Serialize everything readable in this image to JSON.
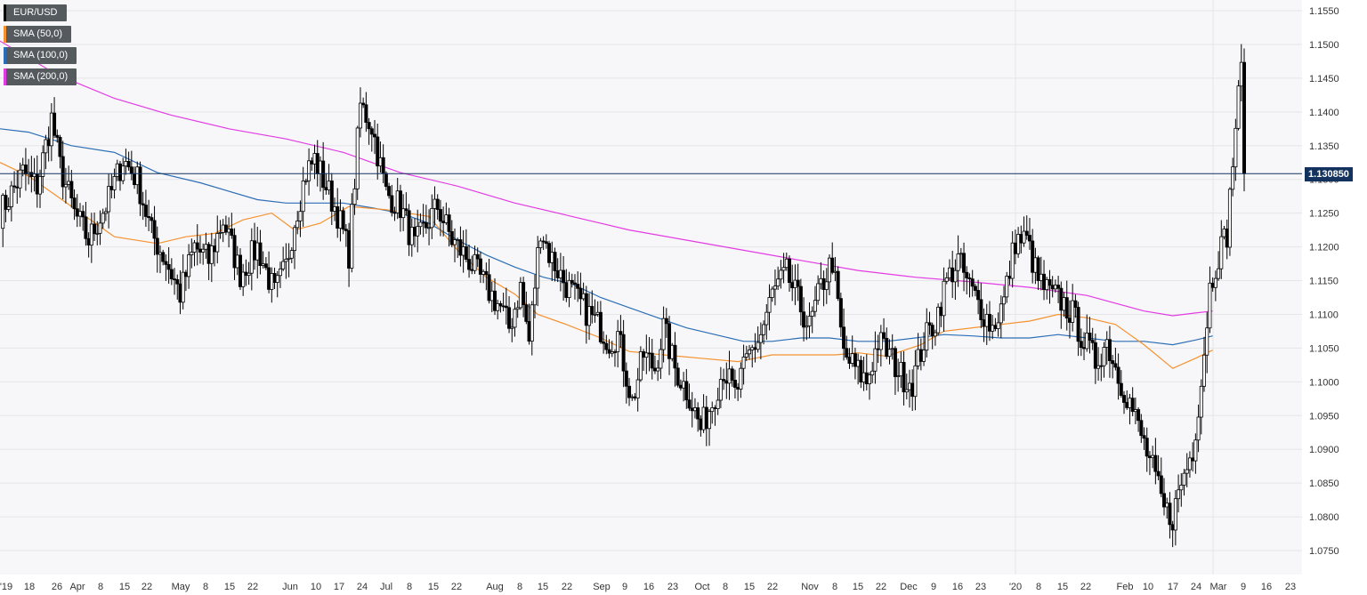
{
  "chart_data": {
    "type": "candlestick",
    "symbol": "EUR/USD",
    "timeframe": "daily",
    "current_price": 1.13085,
    "current_price_label": "1.130850",
    "ylim": [
      1.072,
      1.157
    ],
    "y_ticks": [
      "1.0750",
      "1.0800",
      "1.0850",
      "1.0900",
      "1.0950",
      "1.1000",
      "1.1050",
      "1.1100",
      "1.1150",
      "1.1200",
      "1.1250",
      "1.1300",
      "1.1350",
      "1.1400",
      "1.1450",
      "1.1500",
      "1.1550"
    ],
    "x_ticks": [
      "'19",
      "18",
      "26",
      "Apr",
      "8",
      "15",
      "22",
      "May",
      "8",
      "15",
      "22",
      "Jun",
      "10",
      "17",
      "24",
      "Jul",
      "8",
      "15",
      "22",
      "Aug",
      "8",
      "15",
      "22",
      "Sep",
      "9",
      "16",
      "23",
      "Oct",
      "8",
      "15",
      "22",
      "Nov",
      "8",
      "15",
      "22",
      "Dec",
      "9",
      "16",
      "23",
      "'20",
      "8",
      "15",
      "22",
      "Feb",
      "10",
      "17",
      "24",
      "Mar",
      "9",
      "16",
      "23"
    ],
    "x_tick_label_index": [
      "",
      "",
      "",
      "",
      "",
      "",
      "",
      "",
      "",
      "",
      "",
      "",
      "",
      "",
      "",
      "",
      "",
      "",
      "",
      "",
      "",
      "",
      "",
      "",
      "",
      "",
      "",
      "",
      "",
      "",
      "",
      "",
      "",
      "",
      "",
      "",
      "",
      "",
      "",
      "",
      "",
      "",
      "",
      "",
      "",
      "",
      "",
      "",
      "",
      "",
      ""
    ],
    "legend": [
      {
        "name": "EUR/USD",
        "color": "#000000"
      },
      {
        "name": "SMA (50,0)",
        "color": "#f5922f"
      },
      {
        "name": "SMA (100,0)",
        "color": "#2c6eb5"
      },
      {
        "name": "SMA (200,0)",
        "color": "#e33be3"
      }
    ],
    "colors": {
      "up": "#ffffff",
      "down": "#000000",
      "wick": "#000000",
      "current_line": "#13325e",
      "grid": "#e6e6e9"
    },
    "close_anchors": [
      [
        0,
        1.125
      ],
      [
        8,
        1.131
      ],
      [
        13,
        1.129
      ],
      [
        18,
        1.139
      ],
      [
        21,
        1.132
      ],
      [
        26,
        1.125
      ],
      [
        31,
        1.121
      ],
      [
        38,
        1.127
      ],
      [
        43,
        1.133
      ],
      [
        48,
        1.13
      ],
      [
        53,
        1.122
      ],
      [
        58,
        1.118
      ],
      [
        63,
        1.113
      ],
      [
        68,
        1.12
      ],
      [
        73,
        1.118
      ],
      [
        78,
        1.124
      ],
      [
        84,
        1.116
      ],
      [
        90,
        1.12
      ],
      [
        96,
        1.113
      ],
      [
        100,
        1.117
      ],
      [
        103,
        1.124
      ],
      [
        107,
        1.131
      ],
      [
        110,
        1.133
      ],
      [
        114,
        1.129
      ],
      [
        118,
        1.125
      ],
      [
        122,
        1.119
      ],
      [
        126,
        1.141
      ],
      [
        130,
        1.138
      ],
      [
        135,
        1.128
      ],
      [
        140,
        1.126
      ],
      [
        145,
        1.12
      ],
      [
        150,
        1.124
      ],
      [
        153,
        1.126
      ],
      [
        158,
        1.121
      ],
      [
        164,
        1.118
      ],
      [
        170,
        1.114
      ],
      [
        175,
        1.111
      ],
      [
        178,
        1.108
      ],
      [
        182,
        1.114
      ],
      [
        185,
        1.106
      ],
      [
        189,
        1.123
      ],
      [
        192,
        1.119
      ],
      [
        197,
        1.115
      ],
      [
        202,
        1.112
      ],
      [
        206,
        1.11
      ],
      [
        210,
        1.108
      ],
      [
        213,
        1.106
      ],
      [
        216,
        1.107
      ],
      [
        221,
        1.097
      ],
      [
        225,
        1.104
      ],
      [
        229,
        1.102
      ],
      [
        232,
        1.108
      ],
      [
        236,
        1.102
      ],
      [
        241,
        1.098
      ],
      [
        245,
        1.093
      ],
      [
        249,
        1.097
      ],
      [
        253,
        1.102
      ],
      [
        257,
        1.098
      ],
      [
        262,
        1.104
      ],
      [
        266,
        1.107
      ],
      [
        270,
        1.113
      ],
      [
        275,
        1.116
      ],
      [
        279,
        1.112
      ],
      [
        283,
        1.108
      ],
      [
        287,
        1.114
      ],
      [
        291,
        1.118
      ],
      [
        295,
        1.104
      ],
      [
        299,
        1.102
      ],
      [
        303,
        1.1
      ],
      [
        307,
        1.106
      ],
      [
        311,
        1.104
      ],
      [
        315,
        1.101
      ],
      [
        319,
        1.1
      ],
      [
        323,
        1.106
      ],
      [
        327,
        1.109
      ],
      [
        331,
        1.115
      ],
      [
        335,
        1.118
      ],
      [
        339,
        1.114
      ],
      [
        343,
        1.111
      ],
      [
        347,
        1.108
      ],
      [
        351,
        1.112
      ],
      [
        355,
        1.121
      ],
      [
        359,
        1.121
      ],
      [
        363,
        1.115
      ],
      [
        367,
        1.113
      ],
      [
        371,
        1.112
      ],
      [
        375,
        1.11
      ],
      [
        379,
        1.106
      ],
      [
        383,
        1.103
      ],
      [
        387,
        1.106
      ],
      [
        391,
        1.101
      ],
      [
        395,
        1.097
      ],
      [
        399,
        1.092
      ],
      [
        403,
        1.087
      ],
      [
        407,
        1.081
      ],
      [
        410,
        1.08
      ],
      [
        413,
        1.085
      ],
      [
        417,
        1.09
      ],
      [
        420,
        1.1
      ],
      [
        423,
        1.114
      ],
      [
        426,
        1.119
      ],
      [
        429,
        1.122
      ],
      [
        432,
        1.138
      ],
      [
        434,
        1.146
      ],
      [
        435,
        1.131
      ]
    ],
    "sma50_anchors": [
      [
        0,
        1.1325
      ],
      [
        10,
        1.1305
      ],
      [
        25,
        1.126
      ],
      [
        40,
        1.1215
      ],
      [
        55,
        1.1205
      ],
      [
        65,
        1.1215
      ],
      [
        75,
        1.122
      ],
      [
        85,
        1.124
      ],
      [
        95,
        1.125
      ],
      [
        103,
        1.1225
      ],
      [
        112,
        1.1235
      ],
      [
        122,
        1.126
      ],
      [
        135,
        1.1255
      ],
      [
        150,
        1.1245
      ],
      [
        160,
        1.1195
      ],
      [
        170,
        1.1155
      ],
      [
        180,
        1.113
      ],
      [
        188,
        1.11
      ],
      [
        198,
        1.1085
      ],
      [
        210,
        1.1065
      ],
      [
        220,
        1.1045
      ],
      [
        232,
        1.104
      ],
      [
        245,
        1.1035
      ],
      [
        258,
        1.103
      ],
      [
        270,
        1.104
      ],
      [
        280,
        1.104
      ],
      [
        292,
        1.104
      ],
      [
        300,
        1.1043
      ],
      [
        310,
        1.1038
      ],
      [
        322,
        1.1055
      ],
      [
        330,
        1.1075
      ],
      [
        340,
        1.108
      ],
      [
        350,
        1.1085
      ],
      [
        360,
        1.109
      ],
      [
        370,
        1.11
      ],
      [
        380,
        1.1095
      ],
      [
        390,
        1.1085
      ],
      [
        400,
        1.1055
      ],
      [
        410,
        1.102
      ],
      [
        418,
        1.1035
      ],
      [
        424,
        1.1047
      ]
    ],
    "sma100_anchors": [
      [
        0,
        1.1375
      ],
      [
        10,
        1.137
      ],
      [
        25,
        1.135
      ],
      [
        40,
        1.134
      ],
      [
        55,
        1.131
      ],
      [
        70,
        1.1295
      ],
      [
        90,
        1.127
      ],
      [
        100,
        1.1265
      ],
      [
        110,
        1.1265
      ],
      [
        120,
        1.1265
      ],
      [
        130,
        1.1258
      ],
      [
        140,
        1.125
      ],
      [
        150,
        1.1235
      ],
      [
        160,
        1.121
      ],
      [
        170,
        1.1188
      ],
      [
        180,
        1.117
      ],
      [
        190,
        1.1155
      ],
      [
        200,
        1.1145
      ],
      [
        210,
        1.1125
      ],
      [
        220,
        1.111
      ],
      [
        230,
        1.1095
      ],
      [
        240,
        1.108
      ],
      [
        250,
        1.107
      ],
      [
        260,
        1.106
      ],
      [
        270,
        1.106
      ],
      [
        280,
        1.1065
      ],
      [
        290,
        1.1065
      ],
      [
        300,
        1.106
      ],
      [
        310,
        1.106
      ],
      [
        320,
        1.1065
      ],
      [
        330,
        1.107
      ],
      [
        340,
        1.1068
      ],
      [
        350,
        1.1065
      ],
      [
        360,
        1.1065
      ],
      [
        370,
        1.107
      ],
      [
        380,
        1.1065
      ],
      [
        390,
        1.106
      ],
      [
        400,
        1.106
      ],
      [
        410,
        1.1055
      ],
      [
        418,
        1.1062
      ],
      [
        424,
        1.1068
      ]
    ],
    "sma200_anchors": [
      [
        0,
        1.1505
      ],
      [
        20,
        1.1455
      ],
      [
        40,
        1.142
      ],
      [
        60,
        1.1395
      ],
      [
        80,
        1.1375
      ],
      [
        100,
        1.136
      ],
      [
        120,
        1.134
      ],
      [
        140,
        1.131
      ],
      [
        160,
        1.129
      ],
      [
        180,
        1.1265
      ],
      [
        200,
        1.1245
      ],
      [
        220,
        1.1225
      ],
      [
        240,
        1.121
      ],
      [
        260,
        1.1195
      ],
      [
        280,
        1.118
      ],
      [
        300,
        1.1165
      ],
      [
        320,
        1.1155
      ],
      [
        340,
        1.1148
      ],
      [
        360,
        1.114
      ],
      [
        380,
        1.1128
      ],
      [
        400,
        1.1105
      ],
      [
        410,
        1.1098
      ],
      [
        418,
        1.1102
      ],
      [
        424,
        1.1105
      ]
    ]
  }
}
